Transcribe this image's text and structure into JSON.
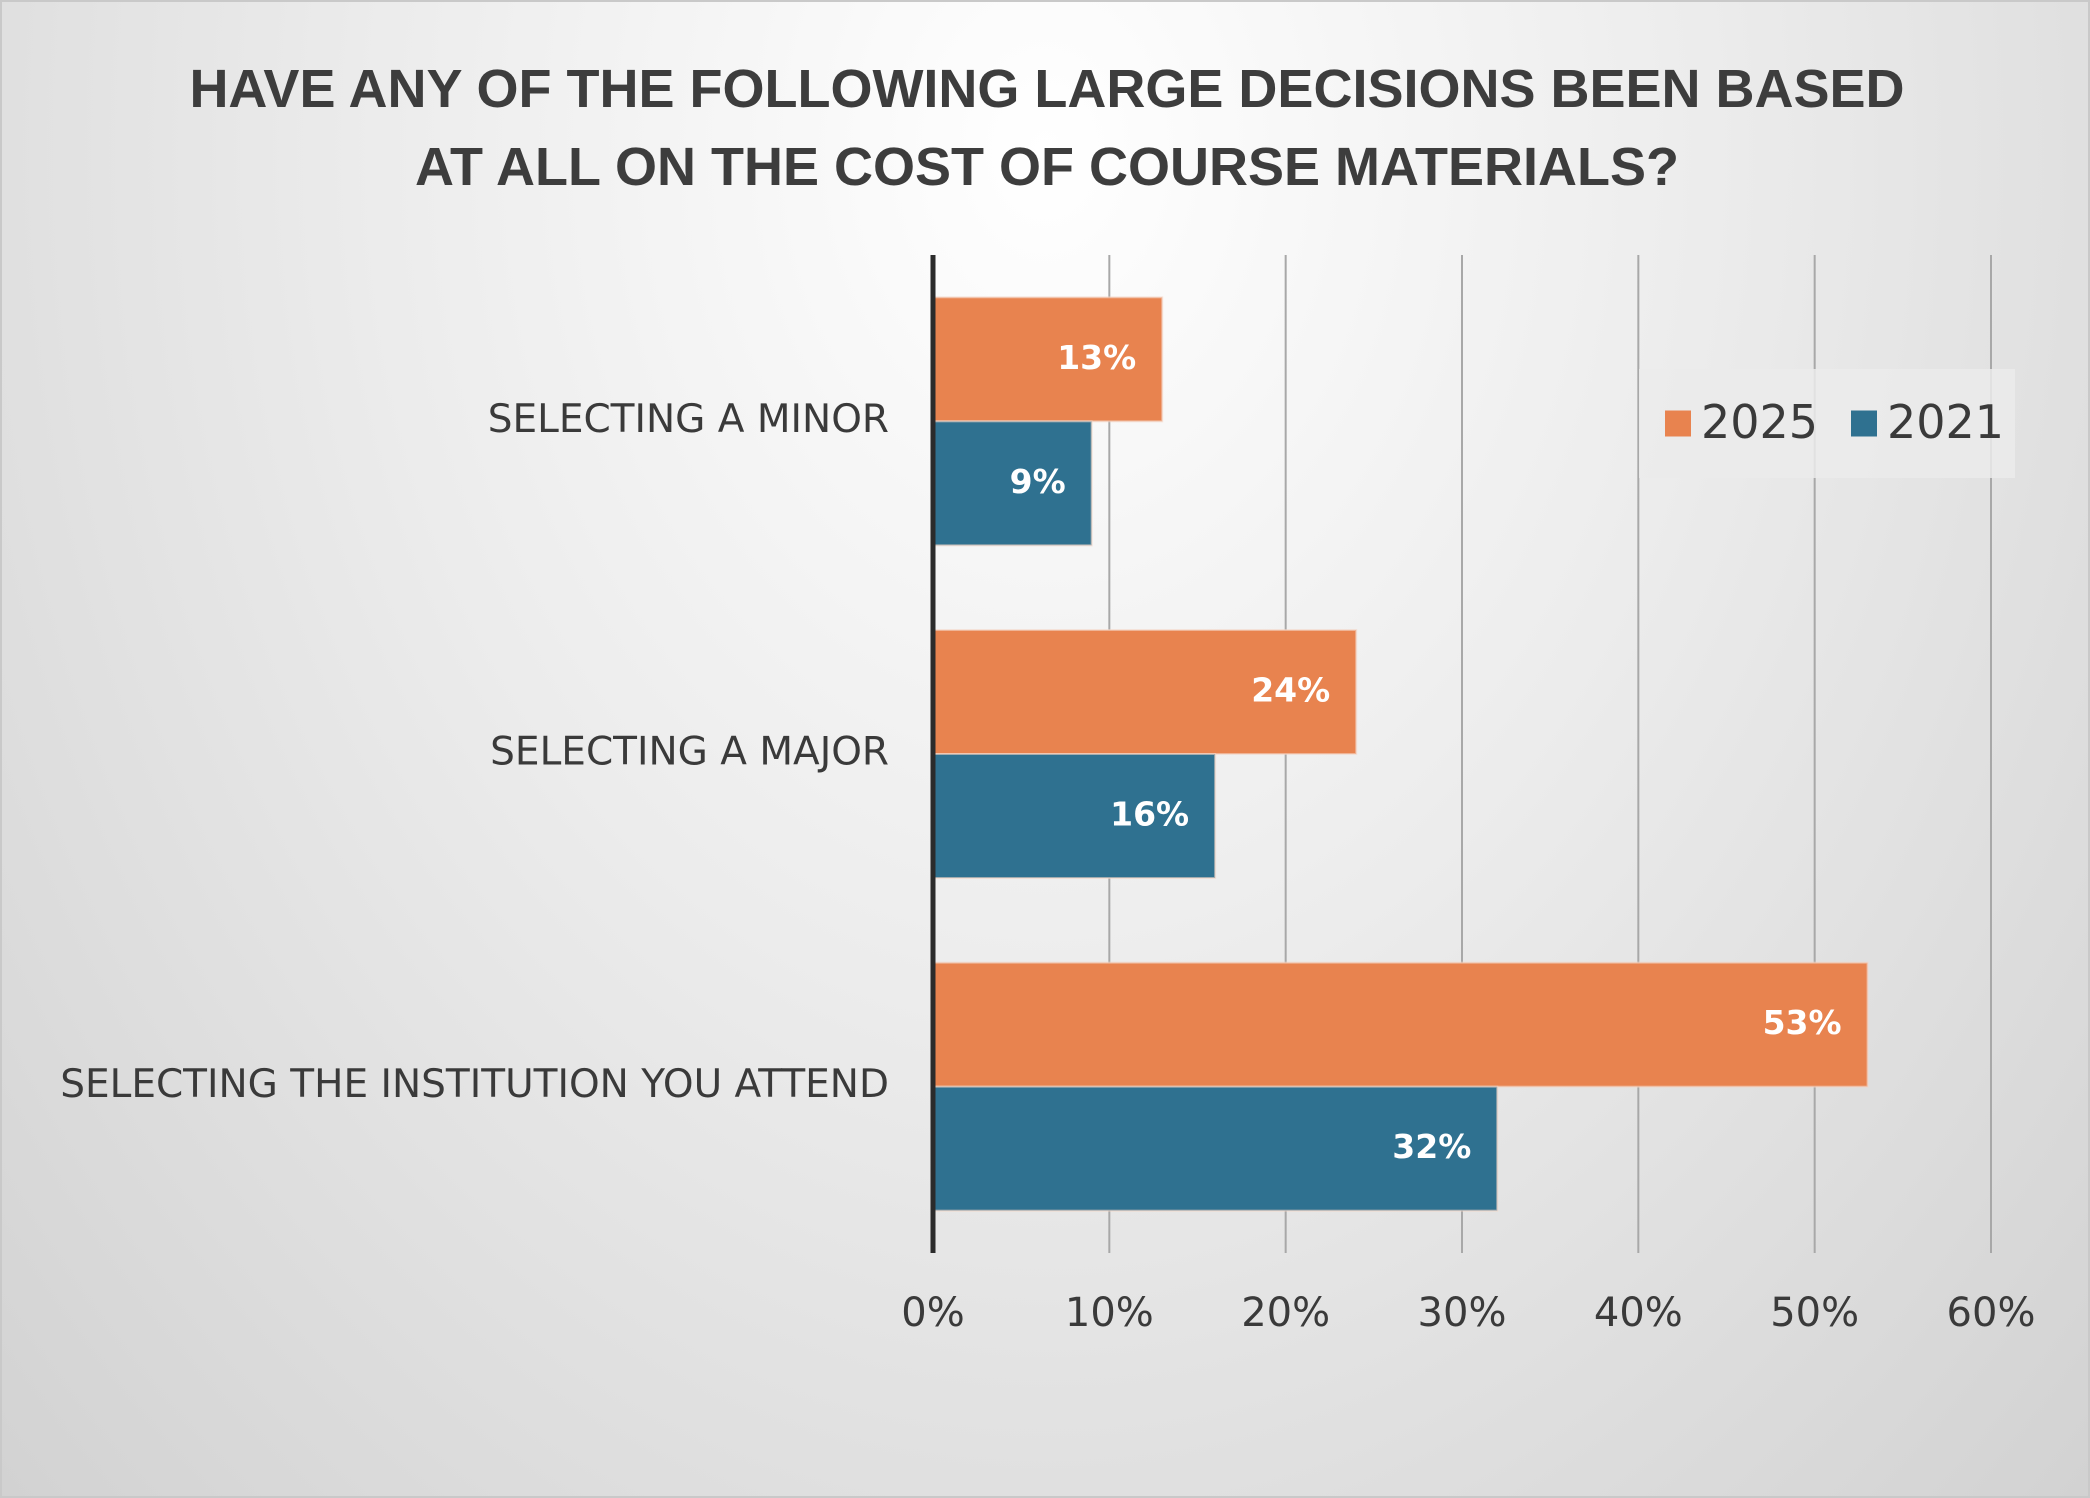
{
  "chart_data": {
    "type": "hbar",
    "title": "HAVE ANY OF THE FOLLOWING LARGE DECISIONS BEEN BASED AT ALL ON THE COST OF COURSE MATERIALS?",
    "categories": [
      "SELECTING A MINOR",
      "SELECTING A MAJOR",
      "SELECTING THE INSTITUTION YOU ATTEND"
    ],
    "series": [
      {
        "name": "2025",
        "color": "#e8834f",
        "values": [
          13,
          24,
          53
        ],
        "value_labels": [
          "13%",
          "24%",
          "53%"
        ]
      },
      {
        "name": "2021",
        "color": "#2f7190",
        "values": [
          9,
          16,
          32
        ],
        "value_labels": [
          "9%",
          "16%",
          "32%"
        ]
      }
    ],
    "xlim": [
      0,
      60
    ],
    "xticks": [
      {
        "value": 0,
        "label": "0%"
      },
      {
        "value": 10,
        "label": "10%"
      },
      {
        "value": 20,
        "label": "20%"
      },
      {
        "value": 30,
        "label": "30%"
      },
      {
        "value": 40,
        "label": "40%"
      },
      {
        "value": 50,
        "label": "50%"
      },
      {
        "value": 60,
        "label": "60%"
      }
    ],
    "grid": true,
    "legend": "top-right"
  }
}
